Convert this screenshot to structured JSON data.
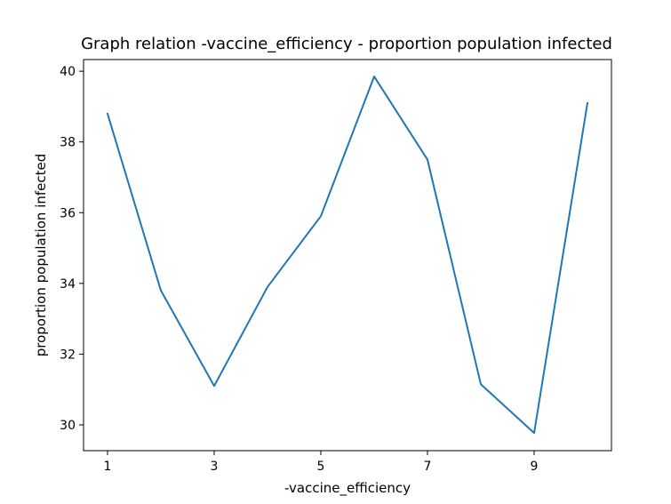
{
  "chart_data": {
    "type": "line",
    "title": "Graph relation -vaccine_efficiency - proportion population infected",
    "xlabel": "-vaccine_efficiency",
    "ylabel": "proportion population infected",
    "xlim": [
      0.55,
      10.45
    ],
    "ylim": [
      29.27,
      40.33
    ],
    "xticks": [
      1,
      3,
      5,
      7,
      9
    ],
    "yticks": [
      30,
      32,
      34,
      36,
      38,
      40
    ],
    "grid": false,
    "legend": "none",
    "line_color": "#1f77b4",
    "series": [
      {
        "x": [
          1,
          2,
          3,
          4,
          5,
          6,
          7,
          8,
          9,
          10
        ],
        "values": [
          38.8,
          33.8,
          31.1,
          33.9,
          35.9,
          39.85,
          37.5,
          31.15,
          29.77,
          39.1
        ]
      }
    ]
  }
}
